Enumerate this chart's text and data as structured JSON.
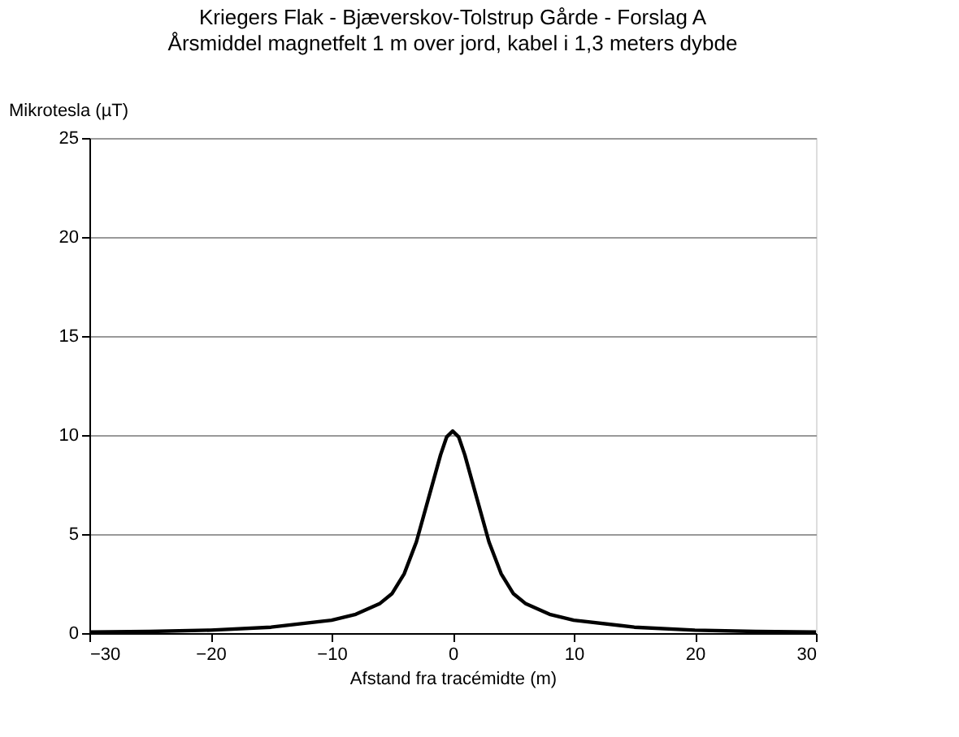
{
  "chart_data": {
    "type": "line",
    "title": "Kriegers Flak - Bjæverskov-Tolstrup Gårde - Forslag A",
    "subtitle": "Årsmiddel magnetfelt 1 m over jord, kabel i 1,3 meters dybde",
    "xlabel": "Afstand fra tracémidte (m)",
    "ylabel": "Mikrotesla (µT)",
    "x": [
      -30,
      -25,
      -20,
      -15,
      -10,
      -8,
      -6,
      -5,
      -4,
      -3,
      -2,
      -1,
      -0.5,
      0,
      0.5,
      1,
      2,
      3,
      4,
      5,
      6,
      8,
      10,
      15,
      20,
      25,
      30
    ],
    "series": [
      {
        "color": "#000000",
        "values": [
          0.05,
          0.08,
          0.15,
          0.3,
          0.65,
          0.95,
          1.5,
          2.0,
          3.0,
          4.6,
          6.8,
          9.0,
          9.9,
          10.2,
          9.9,
          9.0,
          6.8,
          4.6,
          3.0,
          2.0,
          1.5,
          0.95,
          0.65,
          0.3,
          0.15,
          0.08,
          0.05
        ]
      }
    ],
    "xlim": [
      -30,
      30
    ],
    "xticks": [
      -30,
      -20,
      -10,
      0,
      10,
      20,
      30
    ],
    "ylim": [
      0,
      25
    ],
    "yticks": [
      0,
      5,
      10,
      15,
      20,
      25
    ],
    "grid": "y",
    "legend": false,
    "marker": "none",
    "line_style": "solid"
  }
}
